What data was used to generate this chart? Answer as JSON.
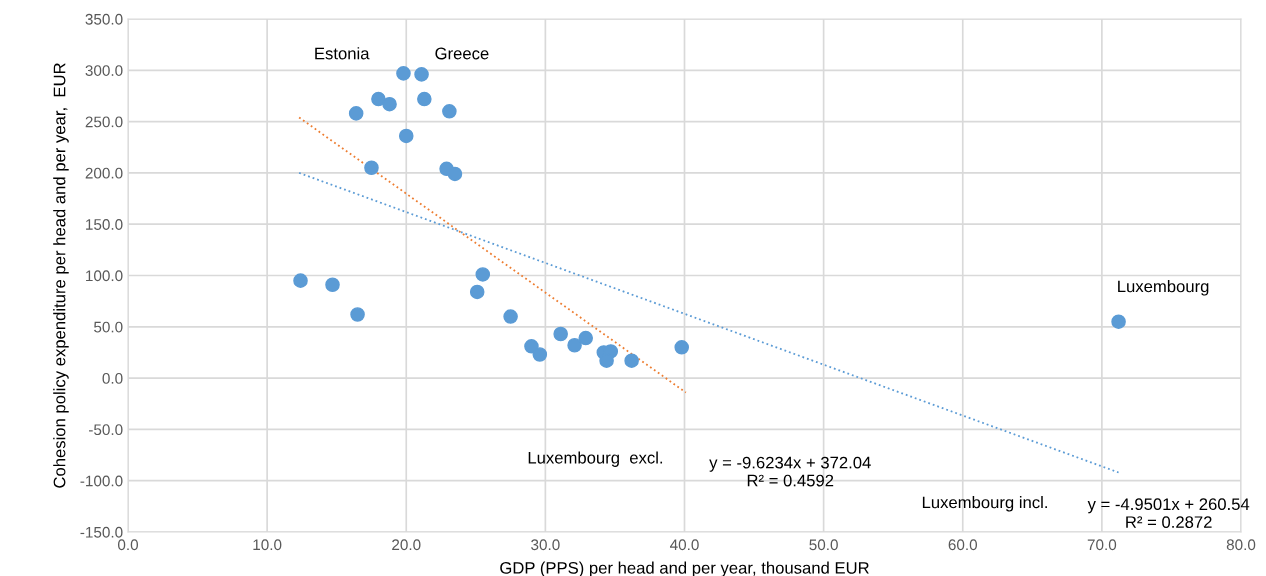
{
  "chart_data": {
    "type": "scatter",
    "xlabel": "GDP (PPS) per head and per year, thousand EUR",
    "ylabel": "Cohesion policy expenditure per head and per year,  EUR",
    "series": [
      {
        "color": "#5b9bd5",
        "marker": "circle",
        "x": [
          12.4,
          14.7,
          16.5,
          16.4,
          17.5,
          18.0,
          18.8,
          19.8,
          20.0,
          21.1,
          21.3,
          23.1,
          22.9,
          23.5,
          25.5,
          25.1,
          27.5,
          29.0,
          29.6,
          31.1,
          32.1,
          32.9,
          34.2,
          34.7,
          34.4,
          36.2,
          39.8,
          71.2
        ],
        "values": [
          95,
          91,
          62,
          258,
          205,
          272,
          267,
          297,
          236,
          296,
          272,
          260,
          204,
          199,
          101,
          84,
          60,
          31,
          23,
          43,
          32,
          39,
          25,
          26,
          17,
          17,
          30,
          55
        ]
      },
      {
        "type": "line",
        "color": "#ed7d31",
        "line_style": "dotted",
        "marker": "none",
        "x": [
          12.3,
          40.1
        ],
        "values": [
          254,
          -14
        ]
      },
      {
        "type": "line",
        "color": "#5b9bd5",
        "line_style": "dotted",
        "marker": "none",
        "x": [
          12.3,
          71.2
        ],
        "values": [
          200,
          -92
        ]
      }
    ],
    "xlim": [
      0,
      80
    ],
    "xticks": [
      {
        "value": 0,
        "label": "0.0"
      },
      {
        "value": 10,
        "label": "10.0"
      },
      {
        "value": 20,
        "label": "20.0"
      },
      {
        "value": 30,
        "label": "30.0"
      },
      {
        "value": 40,
        "label": "40.0"
      },
      {
        "value": 50,
        "label": "50.0"
      },
      {
        "value": 60,
        "label": "60.0"
      },
      {
        "value": 70,
        "label": "70.0"
      },
      {
        "value": 80,
        "label": "80.0"
      }
    ],
    "ylim": [
      -150,
      350
    ],
    "yticks": [
      {
        "value": -150,
        "label": "-150.0"
      },
      {
        "value": -100,
        "label": "-100.0"
      },
      {
        "value": -50,
        "label": "-50.0"
      },
      {
        "value": 0,
        "label": "0.0"
      },
      {
        "value": 50,
        "label": "50.0"
      },
      {
        "value": 100,
        "label": "100.0"
      },
      {
        "value": 150,
        "label": "150.0"
      },
      {
        "value": 200,
        "label": "200.0"
      },
      {
        "value": 250,
        "label": "250.0"
      },
      {
        "value": 300,
        "label": "300.0"
      },
      {
        "value": 350,
        "label": "350.0"
      }
    ],
    "grid": true,
    "legend": false,
    "annotations": [
      "Estonia",
      "Greece",
      "Luxembourg",
      "Luxembourg  excl.",
      "y = -9.6234x + 372.04\nR² = 0.4592",
      "Luxembourg incl.",
      "y = -4.9501x + 260.54\nR² = 0.2872"
    ]
  }
}
